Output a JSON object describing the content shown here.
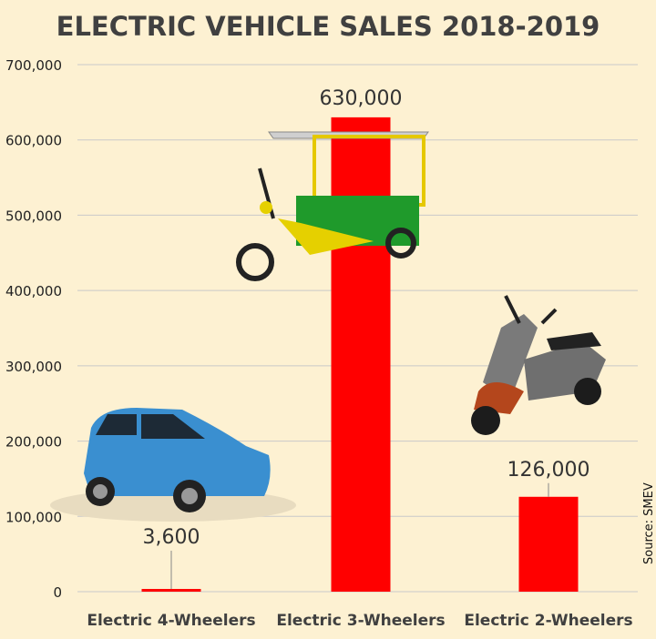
{
  "chart_data": {
    "type": "bar",
    "title": "ELECTRIC VEHICLE SALES 2018-2019",
    "categories": [
      "Electric 4-Wheelers",
      "Electric 3-Wheelers",
      "Electric 2-Wheelers"
    ],
    "values": [
      3600,
      630000,
      126000
    ],
    "data_labels": [
      "3,600",
      "630,000",
      "126,000"
    ],
    "ylim": [
      0,
      700000
    ],
    "yticks": [
      0,
      100000,
      200000,
      300000,
      400000,
      500000,
      600000,
      700000
    ],
    "ytick_labels": [
      "0",
      "100,000",
      "200,000",
      "300,000",
      "400,000",
      "500,000",
      "600,000",
      "700,000"
    ],
    "grid": true,
    "bar_color": "#ff0000",
    "annotation": "Source: SMEV",
    "images": [
      "car-photo",
      "e-rickshaw-photo",
      "scooter-photo"
    ]
  }
}
